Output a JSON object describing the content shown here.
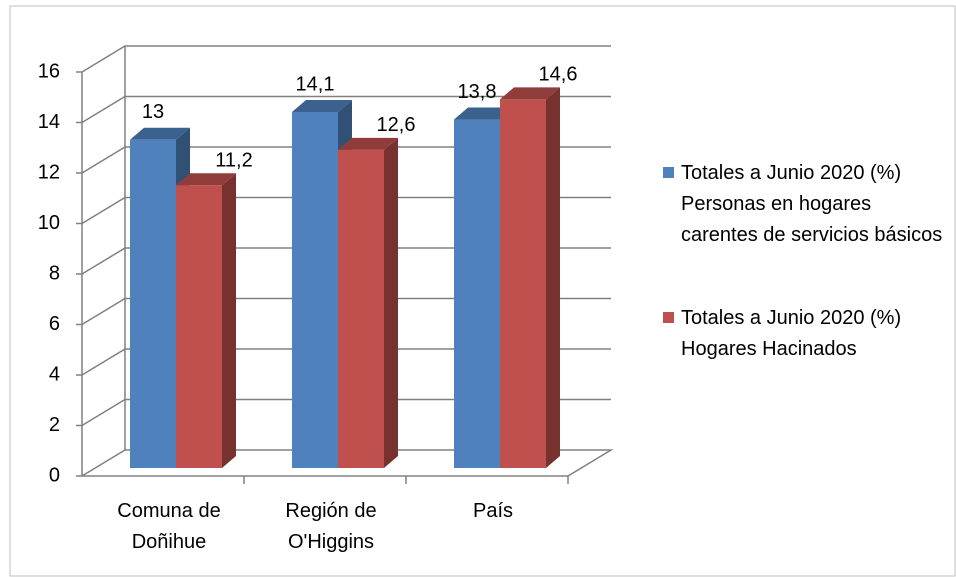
{
  "chart_data": {
    "type": "bar3d",
    "categories": [
      "Comuna de Doñihue",
      "Región de O'Higgins",
      "País"
    ],
    "series": [
      {
        "name": "Totales a Junio 2020 (%) Personas en hogares carentes de servicios básicos",
        "color": "#4f81bd",
        "values": [
          13,
          14.1,
          13.8
        ],
        "value_labels": [
          "13",
          "14,1",
          "13,8"
        ]
      },
      {
        "name": "Totales a Junio 2020 (%) Hogares Hacinados",
        "color": "#c0504d",
        "values": [
          11.2,
          12.6,
          14.6
        ],
        "value_labels": [
          "11,2",
          "12,6",
          "14,6"
        ]
      }
    ],
    "ylim": [
      0,
      16
    ],
    "yticks": [
      0,
      2,
      4,
      6,
      8,
      10,
      12,
      14,
      16
    ],
    "grid": true,
    "legend": "right"
  }
}
